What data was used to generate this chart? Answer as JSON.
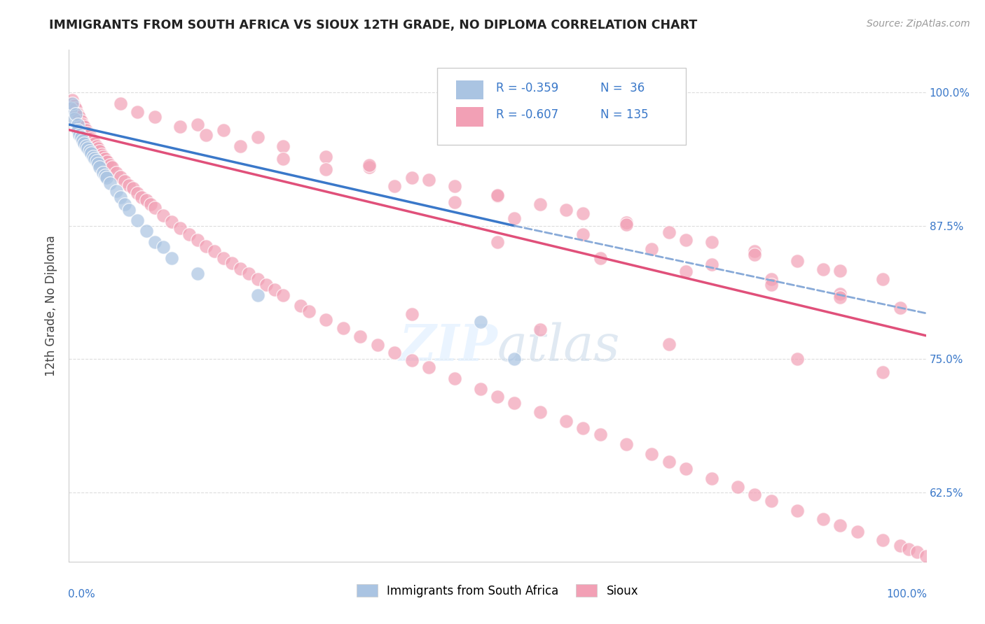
{
  "title": "IMMIGRANTS FROM SOUTH AFRICA VS SIOUX 12TH GRADE, NO DIPLOMA CORRELATION CHART",
  "source": "Source: ZipAtlas.com",
  "ylabel": "12th Grade, No Diploma",
  "ytick_labels": [
    "100.0%",
    "87.5%",
    "75.0%",
    "62.5%"
  ],
  "ytick_values": [
    1.0,
    0.875,
    0.75,
    0.625
  ],
  "xlim": [
    0.0,
    1.0
  ],
  "ylim": [
    0.56,
    1.04
  ],
  "color_blue": "#aac4e2",
  "color_pink": "#f2a0b5",
  "color_blue_line": "#3a78c9",
  "color_pink_line": "#e0507a",
  "color_blue_dashed": "#88aad8",
  "background_color": "#ffffff",
  "grid_color": "#dddddd",
  "blue_x": [
    0.002,
    0.004,
    0.006,
    0.008,
    0.01,
    0.01,
    0.012,
    0.014,
    0.016,
    0.018,
    0.02,
    0.022,
    0.024,
    0.026,
    0.028,
    0.03,
    0.032,
    0.034,
    0.036,
    0.04,
    0.042,
    0.044,
    0.048,
    0.055,
    0.06,
    0.065,
    0.07,
    0.08,
    0.09,
    0.1,
    0.11,
    0.12,
    0.15,
    0.22,
    0.48,
    0.52
  ],
  "blue_y": [
    0.985,
    0.99,
    0.975,
    0.98,
    0.97,
    0.965,
    0.96,
    0.958,
    0.955,
    0.952,
    0.95,
    0.948,
    0.945,
    0.943,
    0.94,
    0.938,
    0.936,
    0.933,
    0.93,
    0.925,
    0.922,
    0.92,
    0.915,
    0.908,
    0.902,
    0.895,
    0.89,
    0.88,
    0.87,
    0.86,
    0.855,
    0.845,
    0.83,
    0.81,
    0.785,
    0.75
  ],
  "pink_x": [
    0.004,
    0.006,
    0.008,
    0.01,
    0.012,
    0.014,
    0.016,
    0.018,
    0.02,
    0.022,
    0.024,
    0.026,
    0.028,
    0.03,
    0.032,
    0.034,
    0.036,
    0.038,
    0.04,
    0.042,
    0.045,
    0.048,
    0.05,
    0.055,
    0.06,
    0.065,
    0.07,
    0.075,
    0.08,
    0.085,
    0.09,
    0.095,
    0.1,
    0.11,
    0.12,
    0.13,
    0.14,
    0.15,
    0.16,
    0.17,
    0.18,
    0.19,
    0.2,
    0.21,
    0.22,
    0.23,
    0.24,
    0.25,
    0.27,
    0.28,
    0.3,
    0.32,
    0.34,
    0.36,
    0.38,
    0.4,
    0.42,
    0.45,
    0.48,
    0.5,
    0.52,
    0.55,
    0.58,
    0.6,
    0.62,
    0.65,
    0.68,
    0.7,
    0.72,
    0.75,
    0.78,
    0.8,
    0.82,
    0.85,
    0.88,
    0.9,
    0.92,
    0.95,
    0.97,
    0.98,
    0.99,
    1.0,
    0.15,
    0.18,
    0.22,
    0.25,
    0.3,
    0.35,
    0.4,
    0.45,
    0.5,
    0.55,
    0.6,
    0.65,
    0.7,
    0.75,
    0.8,
    0.85,
    0.9,
    0.95,
    0.06,
    0.08,
    0.1,
    0.13,
    0.16,
    0.2,
    0.25,
    0.3,
    0.38,
    0.45,
    0.52,
    0.6,
    0.68,
    0.75,
    0.82,
    0.9,
    0.97,
    0.35,
    0.42,
    0.5,
    0.58,
    0.65,
    0.72,
    0.8,
    0.88,
    0.5,
    0.62,
    0.72,
    0.82,
    0.9,
    0.4,
    0.55,
    0.7,
    0.85,
    0.95
  ],
  "pink_y": [
    0.993,
    0.988,
    0.985,
    0.98,
    0.977,
    0.973,
    0.97,
    0.968,
    0.965,
    0.962,
    0.96,
    0.957,
    0.955,
    0.952,
    0.95,
    0.948,
    0.945,
    0.942,
    0.94,
    0.938,
    0.935,
    0.932,
    0.93,
    0.925,
    0.921,
    0.917,
    0.913,
    0.91,
    0.906,
    0.902,
    0.899,
    0.895,
    0.892,
    0.885,
    0.879,
    0.873,
    0.867,
    0.862,
    0.856,
    0.851,
    0.845,
    0.84,
    0.835,
    0.83,
    0.825,
    0.82,
    0.815,
    0.81,
    0.8,
    0.795,
    0.787,
    0.779,
    0.771,
    0.763,
    0.756,
    0.749,
    0.742,
    0.732,
    0.722,
    0.715,
    0.709,
    0.7,
    0.692,
    0.685,
    0.679,
    0.67,
    0.661,
    0.654,
    0.647,
    0.638,
    0.63,
    0.623,
    0.617,
    0.608,
    0.6,
    0.594,
    0.588,
    0.58,
    0.575,
    0.572,
    0.569,
    0.565,
    0.97,
    0.965,
    0.958,
    0.95,
    0.94,
    0.93,
    0.92,
    0.912,
    0.903,
    0.895,
    0.887,
    0.878,
    0.869,
    0.86,
    0.851,
    0.842,
    0.833,
    0.825,
    0.99,
    0.982,
    0.977,
    0.968,
    0.96,
    0.95,
    0.938,
    0.928,
    0.912,
    0.897,
    0.882,
    0.867,
    0.853,
    0.839,
    0.825,
    0.811,
    0.798,
    0.932,
    0.918,
    0.904,
    0.89,
    0.876,
    0.862,
    0.848,
    0.834,
    0.86,
    0.845,
    0.832,
    0.82,
    0.808,
    0.792,
    0.778,
    0.764,
    0.75,
    0.738
  ]
}
